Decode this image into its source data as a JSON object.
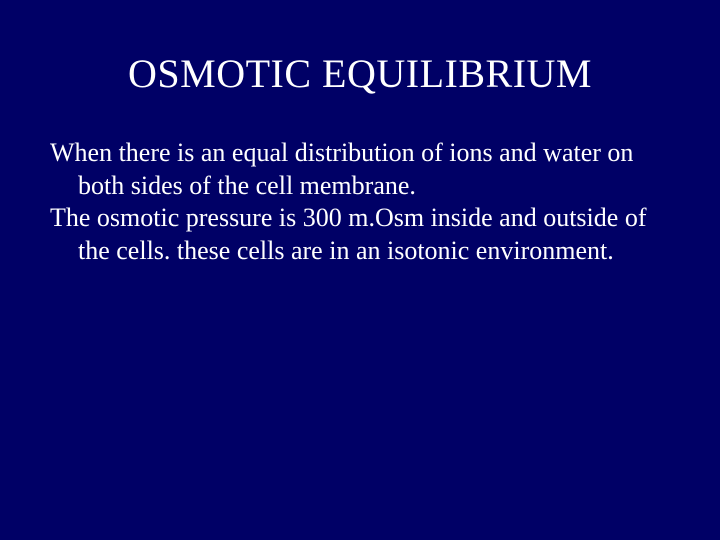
{
  "slide": {
    "title": "OSMOTIC EQUILIBRIUM",
    "para1": "When there is an equal distribution of ions and water on both sides of the cell membrane.",
    "para2": "The osmotic pressure is 300 m.Osm inside and outside of the cells. these cells are in an isotonic environment.",
    "background_color": "#000066",
    "text_color": "#ffffff",
    "title_fontsize": 40,
    "body_fontsize": 26,
    "font_family": "Times New Roman"
  }
}
